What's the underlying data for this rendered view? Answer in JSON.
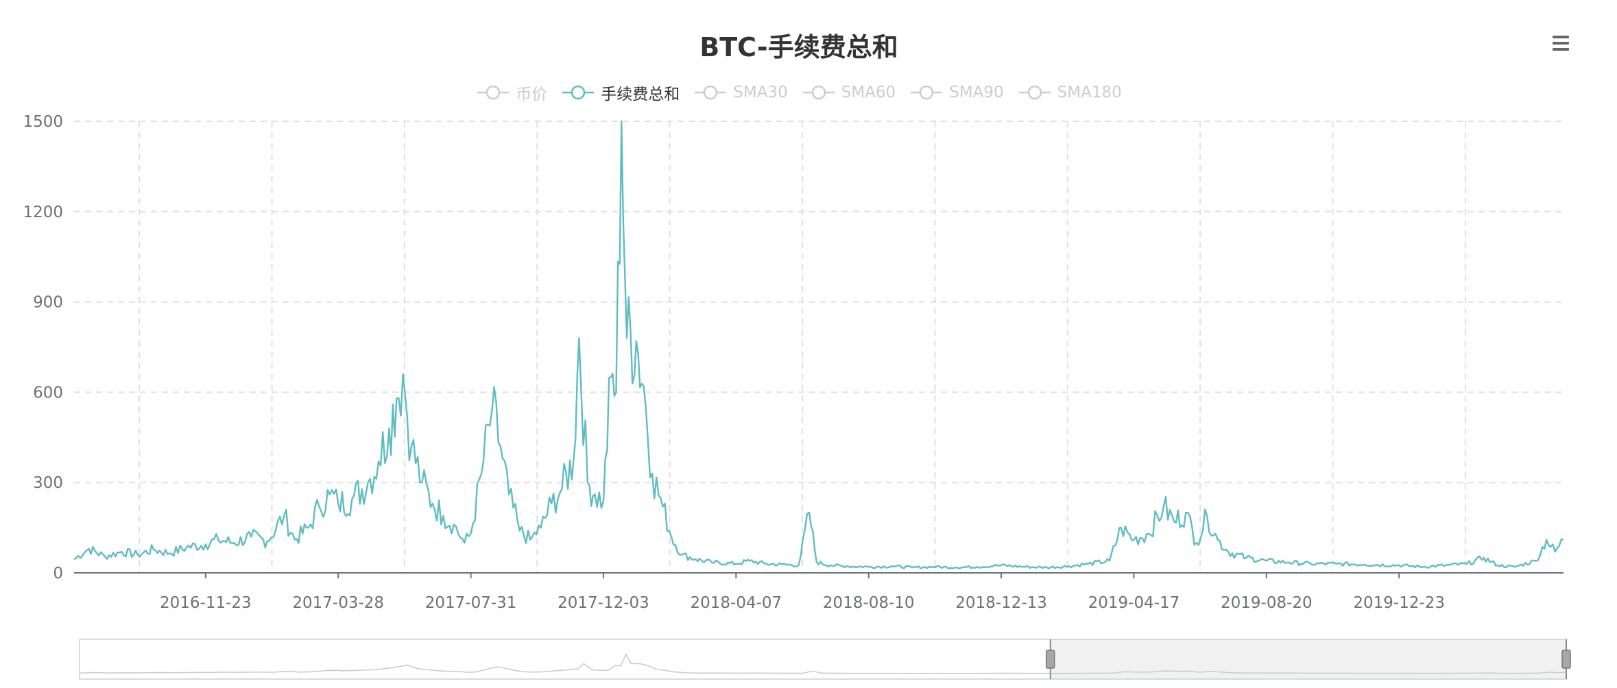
{
  "title": "BTC-手续费总和",
  "legend": [
    {
      "label": "币价",
      "active": false
    },
    {
      "label": "手续费总和",
      "active": true
    },
    {
      "label": "SMA30",
      "active": false
    },
    {
      "label": "SMA60",
      "active": false
    },
    {
      "label": "SMA90",
      "active": false
    },
    {
      "label": "SMA180",
      "active": false
    }
  ],
  "colors": {
    "series": "#5fbcc1",
    "inactive": "#cccccc",
    "grid": "#e0e0e0",
    "axis": "#6e7079"
  },
  "icons": {
    "menu": "hamburger-menu-icon"
  },
  "datazoom": {
    "start_fraction": 0.653,
    "end_fraction": 1.0
  },
  "chart_data": {
    "type": "line",
    "title": "BTC-手续费总和",
    "xlabel": "",
    "ylabel": "",
    "ylim": [
      0,
      1500
    ],
    "yticks": [
      0,
      300,
      600,
      900,
      1200,
      1500
    ],
    "xlim": [
      "2016-07-22",
      "2020-05-26"
    ],
    "xticks": [
      "2016-11-23",
      "2017-03-28",
      "2017-07-31",
      "2017-12-03",
      "2018-04-07",
      "2018-08-10",
      "2018-12-13",
      "2019-04-17",
      "2019-08-20",
      "2019-12-23"
    ],
    "grid": true,
    "legend_position": "top-center",
    "series": [
      {
        "name": "手续费总和",
        "color": "#5fbcc1",
        "points": [
          [
            "2016-07-22",
            45
          ],
          [
            "2016-08-05",
            80
          ],
          [
            "2016-08-20",
            55
          ],
          [
            "2016-09-05",
            70
          ],
          [
            "2016-09-20",
            60
          ],
          [
            "2016-10-05",
            78
          ],
          [
            "2016-10-20",
            65
          ],
          [
            "2016-11-05",
            85
          ],
          [
            "2016-11-23",
            95
          ],
          [
            "2016-12-05",
            110
          ],
          [
            "2016-12-20",
            100
          ],
          [
            "2017-01-05",
            120
          ],
          [
            "2017-01-20",
            105
          ],
          [
            "2017-02-05",
            190
          ],
          [
            "2017-02-15",
            110
          ],
          [
            "2017-02-28",
            150
          ],
          [
            "2017-03-10",
            220
          ],
          [
            "2017-03-20",
            260
          ],
          [
            "2017-03-28",
            230
          ],
          [
            "2017-04-10",
            245
          ],
          [
            "2017-04-25",
            300
          ],
          [
            "2017-05-05",
            370
          ],
          [
            "2017-05-15",
            480
          ],
          [
            "2017-05-22",
            580
          ],
          [
            "2017-05-28",
            660
          ],
          [
            "2017-06-05",
            420
          ],
          [
            "2017-06-15",
            300
          ],
          [
            "2017-06-25",
            230
          ],
          [
            "2017-07-05",
            190
          ],
          [
            "2017-07-15",
            160
          ],
          [
            "2017-07-25",
            100
          ],
          [
            "2017-07-31",
            130
          ],
          [
            "2017-08-10",
            330
          ],
          [
            "2017-08-20",
            540
          ],
          [
            "2017-08-28",
            420
          ],
          [
            "2017-09-05",
            260
          ],
          [
            "2017-09-15",
            140
          ],
          [
            "2017-09-25",
            110
          ],
          [
            "2017-10-05",
            150
          ],
          [
            "2017-10-15",
            230
          ],
          [
            "2017-10-25",
            280
          ],
          [
            "2017-11-05",
            380
          ],
          [
            "2017-11-10",
            780
          ],
          [
            "2017-11-18",
            300
          ],
          [
            "2017-11-25",
            260
          ],
          [
            "2017-12-03",
            240
          ],
          [
            "2017-12-10",
            650
          ],
          [
            "2017-12-15",
            600
          ],
          [
            "2017-12-20",
            1500
          ],
          [
            "2017-12-25",
            780
          ],
          [
            "2018-01-03",
            770
          ],
          [
            "2018-01-10",
            620
          ],
          [
            "2018-01-18",
            330
          ],
          [
            "2018-01-28",
            220
          ],
          [
            "2018-02-05",
            120
          ],
          [
            "2018-02-15",
            60
          ],
          [
            "2018-02-28",
            45
          ],
          [
            "2018-03-15",
            35
          ],
          [
            "2018-04-07",
            30
          ],
          [
            "2018-04-20",
            40
          ],
          [
            "2018-05-05",
            30
          ],
          [
            "2018-05-20",
            28
          ],
          [
            "2018-06-05",
            25
          ],
          [
            "2018-06-15",
            200
          ],
          [
            "2018-06-22",
            35
          ],
          [
            "2018-07-05",
            25
          ],
          [
            "2018-07-20",
            22
          ],
          [
            "2018-08-10",
            20
          ],
          [
            "2018-09-01",
            22
          ],
          [
            "2018-09-20",
            18
          ],
          [
            "2018-10-10",
            20
          ],
          [
            "2018-11-01",
            18
          ],
          [
            "2018-11-20",
            20
          ],
          [
            "2018-12-13",
            25
          ],
          [
            "2019-01-05",
            20
          ],
          [
            "2019-01-25",
            18
          ],
          [
            "2019-02-15",
            22
          ],
          [
            "2019-03-05",
            30
          ],
          [
            "2019-03-25",
            40
          ],
          [
            "2019-04-05",
            150
          ],
          [
            "2019-04-17",
            110
          ],
          [
            "2019-05-01",
            130
          ],
          [
            "2019-05-15",
            220
          ],
          [
            "2019-05-25",
            170
          ],
          [
            "2019-06-05",
            200
          ],
          [
            "2019-06-15",
            100
          ],
          [
            "2019-06-25",
            190
          ],
          [
            "2019-07-05",
            110
          ],
          [
            "2019-07-15",
            70
          ],
          [
            "2019-08-01",
            50
          ],
          [
            "2019-08-20",
            40
          ],
          [
            "2019-09-10",
            35
          ],
          [
            "2019-10-01",
            30
          ],
          [
            "2019-10-25",
            30
          ],
          [
            "2019-11-20",
            28
          ],
          [
            "2019-12-23",
            25
          ],
          [
            "2020-01-15",
            20
          ],
          [
            "2020-02-05",
            25
          ],
          [
            "2020-02-25",
            30
          ],
          [
            "2020-03-12",
            50
          ],
          [
            "2020-03-25",
            25
          ],
          [
            "2020-04-10",
            20
          ],
          [
            "2020-04-30",
            40
          ],
          [
            "2020-05-10",
            110
          ],
          [
            "2020-05-18",
            70
          ],
          [
            "2020-05-26",
            110
          ]
        ]
      }
    ]
  }
}
